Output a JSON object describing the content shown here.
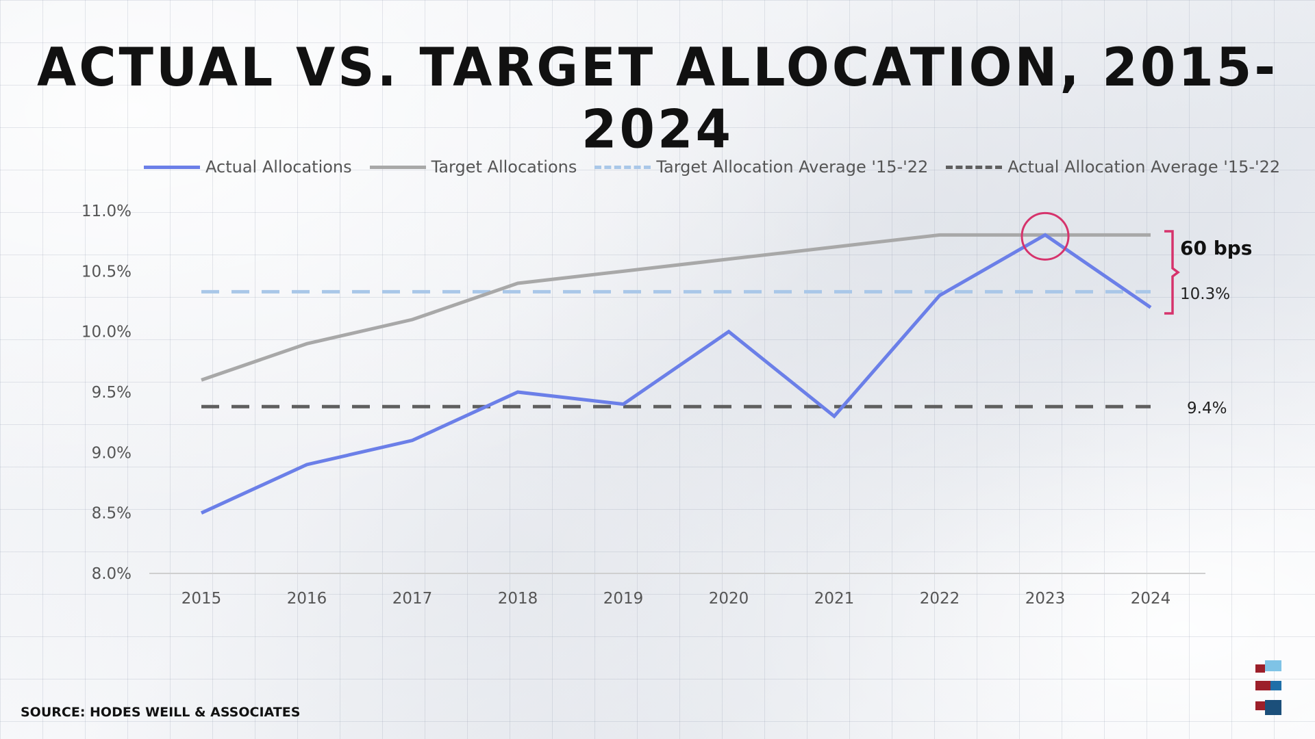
{
  "title": "Actual vs. Target Allocation, 2015-2024",
  "source": "SOURCE: HODES WEILL & ASSOCIATES",
  "colors": {
    "actual": "#6b7fe8",
    "target": "#a8a8a8",
    "target_avg": "#a9c7e8",
    "actual_avg": "#5f5f5f",
    "highlight": "#d6336c"
  },
  "chart_data": {
    "type": "line",
    "categories": [
      "2015",
      "2016",
      "2017",
      "2018",
      "2019",
      "2020",
      "2021",
      "2022",
      "2023",
      "2024"
    ],
    "series": [
      {
        "name": "Actual Allocations",
        "values": [
          8.5,
          8.9,
          9.1,
          9.5,
          9.4,
          10.0,
          9.3,
          10.3,
          10.8,
          10.2
        ]
      },
      {
        "name": "Target Allocations",
        "values": [
          9.6,
          9.9,
          10.1,
          10.4,
          10.5,
          10.6,
          10.7,
          10.8,
          10.8,
          10.8
        ]
      },
      {
        "name": "Target Allocation Average '15-'22",
        "values": [
          10.33,
          10.33,
          10.33,
          10.33,
          10.33,
          10.33,
          10.33,
          10.33,
          10.33,
          10.33
        ]
      },
      {
        "name": "Actual Allocation Average '15-'22",
        "values": [
          9.38,
          9.38,
          9.38,
          9.38,
          9.38,
          9.38,
          9.38,
          9.38,
          9.38,
          9.38
        ]
      }
    ],
    "yticks": [
      "8.0%",
      "8.5%",
      "9.0%",
      "9.5%",
      "10.0%",
      "10.5%",
      "11.0%"
    ],
    "ylim": [
      8.0,
      11.0
    ],
    "legend": "top",
    "grid": false,
    "annotations": {
      "gap": "60 bps",
      "target_avg_label": "10.3%",
      "actual_avg_label": "9.4%",
      "highlight_year": "2023"
    }
  }
}
